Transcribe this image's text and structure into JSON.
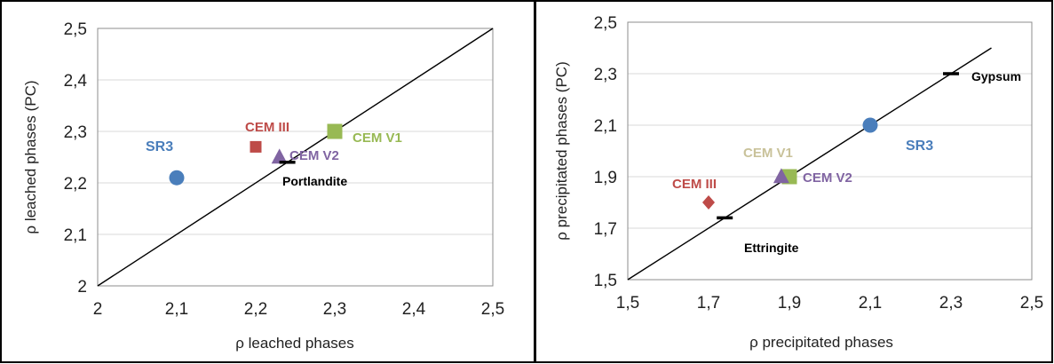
{
  "chart_data": [
    {
      "type": "scatter",
      "title": "",
      "xlabel": "ρ leached phases",
      "ylabel": "ρ leached phases (PC)",
      "xlim": [
        2,
        2.5
      ],
      "ylim": [
        2,
        2.5
      ],
      "xticks": [
        "2",
        "2,1",
        "2,2",
        "2,3",
        "2,4",
        "2,5"
      ],
      "yticks": [
        "2",
        "2,1",
        "2,2",
        "2,3",
        "2,4",
        "2,5"
      ],
      "grid": "horizontal",
      "legend": "none",
      "identity_line": {
        "x": [
          2,
          2.5
        ],
        "y": [
          2,
          2.5
        ]
      },
      "points": [
        {
          "label": "SR3",
          "x": 2.1,
          "y": 2.21,
          "marker": "circle",
          "color": "#4a7ebb"
        },
        {
          "label": "CEM III",
          "x": 2.2,
          "y": 2.27,
          "marker": "square",
          "color": "#be4b48"
        },
        {
          "label": "CEM V1",
          "x": 2.3,
          "y": 2.3,
          "marker": "square",
          "color": "#98b954"
        },
        {
          "label": "CEM V2",
          "x": 2.23,
          "y": 2.25,
          "marker": "triangle",
          "color": "#8064a2"
        },
        {
          "label": "Portlandite",
          "x": 2.24,
          "y": 2.24,
          "marker": "dash",
          "color": "#000000"
        }
      ]
    },
    {
      "type": "scatter",
      "title": "",
      "xlabel": "ρ precipitated phases",
      "ylabel": "ρ precipitated phases (PC)",
      "xlim": [
        1.5,
        2.5
      ],
      "ylim": [
        1.5,
        2.5
      ],
      "xticks": [
        "1,5",
        "1,7",
        "1,9",
        "2,1",
        "2,3",
        "2,5"
      ],
      "yticks": [
        "1,5",
        "1,7",
        "1,9",
        "2,1",
        "2,3",
        "2,5"
      ],
      "grid": "horizontal",
      "legend": "none",
      "identity_line": {
        "x": [
          1.5,
          2.4
        ],
        "y": [
          1.5,
          2.4
        ]
      },
      "points": [
        {
          "label": "SR3",
          "x": 2.1,
          "y": 2.1,
          "marker": "circle",
          "color": "#4a7ebb"
        },
        {
          "label": "CEM III",
          "x": 1.7,
          "y": 1.8,
          "marker": "diamond",
          "color": "#be4b48"
        },
        {
          "label": "CEM V1",
          "x": 1.9,
          "y": 1.9,
          "marker": "square",
          "color": "#98b954"
        },
        {
          "label": "CEM V2",
          "x": 1.88,
          "y": 1.9,
          "marker": "triangle",
          "color": "#8064a2"
        },
        {
          "label": "Ettringite",
          "x": 1.74,
          "y": 1.74,
          "marker": "dash",
          "color": "#000000"
        },
        {
          "label": "Gypsum",
          "x": 2.3,
          "y": 2.3,
          "marker": "dash",
          "color": "#000000"
        }
      ]
    }
  ],
  "label_colors": {
    "SR3": "#4a7ebb",
    "CEM III": "#be4b48",
    "CEM V1 (left)": "#98b954",
    "CEM V1 (right)": "#c9c29a",
    "CEM V2": "#8064a2",
    "phase": "#000000"
  }
}
